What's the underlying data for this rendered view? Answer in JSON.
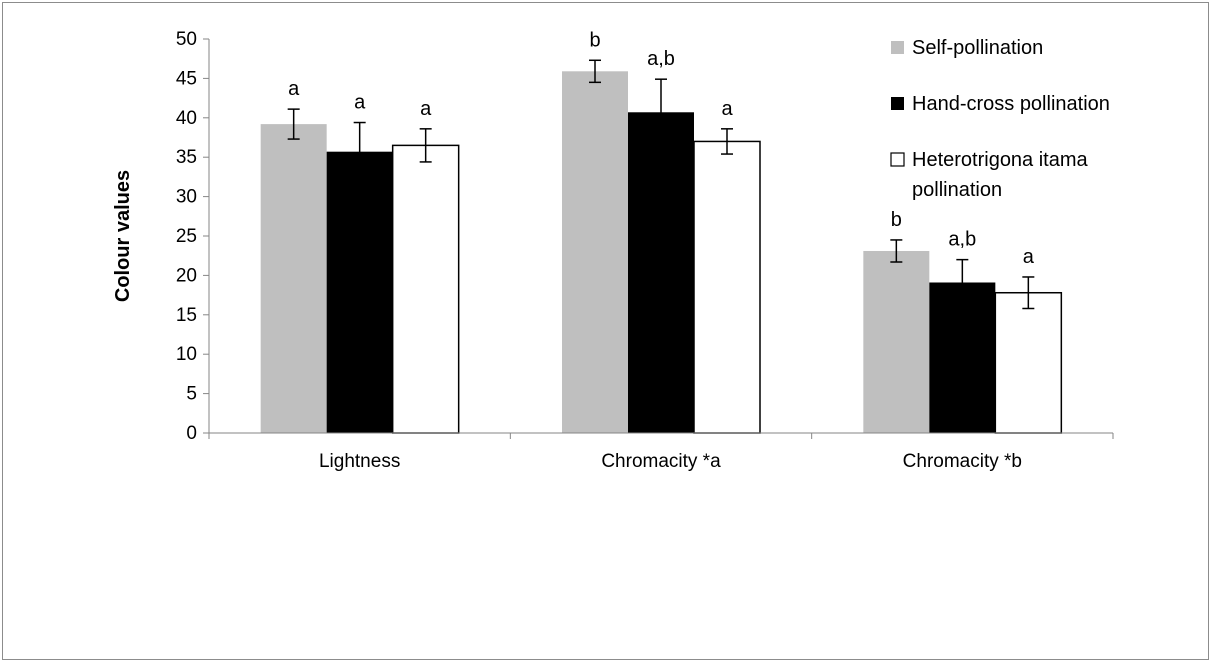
{
  "chart_data": {
    "type": "bar",
    "xlabel": "",
    "ylabel": "Colour values",
    "ylim": [
      0,
      50
    ],
    "ytick_step": 5,
    "categories": [
      "Lightness",
      "Chromacity *a",
      "Chromacity *b"
    ],
    "series": [
      {
        "name": "Self-pollination",
        "color": "#bfbfbf",
        "values": [
          39.2,
          45.9,
          23.1
        ],
        "error": [
          1.9,
          1.4,
          1.4
        ],
        "letters": [
          "a",
          "b",
          "b"
        ]
      },
      {
        "name": "Hand-cross pollination",
        "color": "#000000",
        "values": [
          35.7,
          40.7,
          19.1
        ],
        "error": [
          3.7,
          4.2,
          2.9
        ],
        "letters": [
          "a",
          "a,b",
          "a,b"
        ]
      },
      {
        "name_lines": [
          "Heterotrigona itama",
          "pollination"
        ],
        "color": "#ffffff",
        "values": [
          36.5,
          37.0,
          17.8
        ],
        "error": [
          2.1,
          1.6,
          2.0
        ],
        "letters": [
          "a",
          "a",
          "a"
        ]
      }
    ],
    "legend": "top-right",
    "grid": false
  }
}
